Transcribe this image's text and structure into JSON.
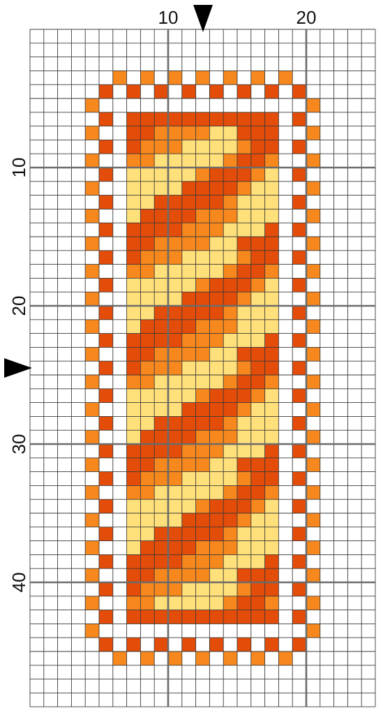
{
  "grid": {
    "columns": 25,
    "rows": 49,
    "major_every": 10
  },
  "colors": {
    "light_yellow": "#ffe07a",
    "orange": "#f6881e",
    "dark_orange": "#e34c09",
    "grid_line": "#3a3a3a",
    "major_line": "#6b6b6b",
    "marker": "#000000"
  },
  "axes": {
    "top_labels": [
      "10",
      "20"
    ],
    "left_labels": [
      "10",
      "20",
      "30",
      "40"
    ]
  },
  "center_markers": {
    "column": 12.5,
    "row": 24.5
  },
  "pattern": {
    "legend": {
      "Y": "light_yellow",
      "O": "orange",
      "D": "dark_orange"
    },
    "rows": [
      ".........................",
      ".........................",
      ".........................",
      "......O.O.O.O.O.O.O......",
      ".....D.D.D.D.D.D.D.D.....",
      "....O...............O....",
      ".....D.DDDDDDDDDDD.D.....",
      "....O..DDOOOOYYDDD..O....",
      ".....D.DOOOYYYYODD.D.....",
      "....O..OOYYYYYODDO..O....",
      ".....D.YYYYYODDDOY.D.....",
      "....O..YYYYDDDDOYY..O....",
      ".....D.YYDDDDDOYYY.D.....",
      "....O..YDDDDOOOYYY..O....",
      ".....D.DDDDOOOYYYD.D.....",
      "....O..DDOOOOYYDDD..O....",
      ".....D.DOOOYYYYODD.D.....",
      "....O..OOYYYYYODDO..O....",
      ".....D.YYYYYODDDOY.D.....",
      "....O..YYYYDDDDOYY..O....",
      ".....D.YYDDDDDOYYY.D.....",
      "....O..YDDDDOOOYYY..O....",
      ".....D.DDDDOOOYYYD.D.....",
      "....O..DDOOOOYYDDD..O....",
      ".....D.DOOOYYYYODD.D.....",
      "....O..OOYYYYYODDO..O....",
      ".....D.YYYYYODDDOY.D.....",
      "....O..YYYYDDDDOYY..O....",
      ".....D.YYDDDDDOYYY.D.....",
      "....O..YDDDDOOOYYY..O....",
      ".....D.DDDDOOOYYYD.D.....",
      "....O..DDOOOOYYDDD..O....",
      ".....D.DOOOYYYYODD.D.....",
      "....O..OOYYYYYODDO..O....",
      ".....D.YYYYYODDDOY.D.....",
      "....O..YYYYDDDDOYY..O....",
      ".....D.YYDDDDDOYYY.D.....",
      "....O..YDDDDOOOYYY..O....",
      ".....D.DDDDOOOYYYD.D.....",
      "....O..DDOOOOYYDDD..O....",
      ".....D.DOOOYYYYODD.D.....",
      "....O..OOYYYYYODDO..O....",
      ".....D.DDDDDDDDDDD.D.....",
      "....O...............O....",
      ".....D.D.D.D.D.D.D.D.....",
      "......O.O.O.O.O.O.O......",
      ".........................",
      ".........................",
      "........................."
    ]
  }
}
